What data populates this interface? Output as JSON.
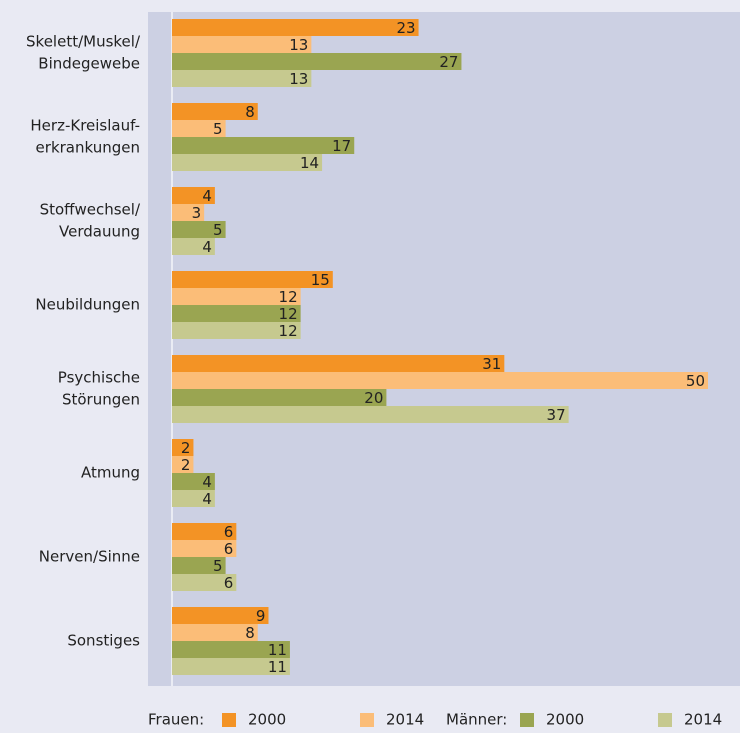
{
  "chart_data": {
    "type": "bar",
    "orientation": "horizontal",
    "categories": [
      [
        "Skelett/Muskel/",
        "Bindegewebe"
      ],
      [
        "Herz-Kreislauf-",
        "erkrankungen"
      ],
      [
        "Stoffwechsel/",
        "Verdauung"
      ],
      [
        "Neubildungen"
      ],
      [
        "Psychische",
        "Störungen"
      ],
      [
        "Atmung"
      ],
      [
        "Nerven/Sinne"
      ],
      [
        "Sonstiges"
      ]
    ],
    "legend_groups": [
      "Frauen:",
      "Männer:"
    ],
    "series": [
      {
        "name": "2000",
        "group": 0,
        "color": "#f39325",
        "values": [
          23,
          8,
          4,
          15,
          31,
          2,
          6,
          9
        ]
      },
      {
        "name": "2014",
        "group": 0,
        "color": "#fbbd78",
        "values": [
          13,
          5,
          3,
          12,
          50,
          2,
          6,
          8
        ]
      },
      {
        "name": "2000",
        "group": 1,
        "color": "#9aa551",
        "values": [
          27,
          17,
          5,
          12,
          20,
          4,
          5,
          11
        ]
      },
      {
        "name": "2014",
        "group": 1,
        "color": "#c6c98f",
        "values": [
          13,
          14,
          4,
          12,
          37,
          4,
          6,
          11
        ]
      }
    ],
    "xlim": [
      0,
      50
    ]
  }
}
